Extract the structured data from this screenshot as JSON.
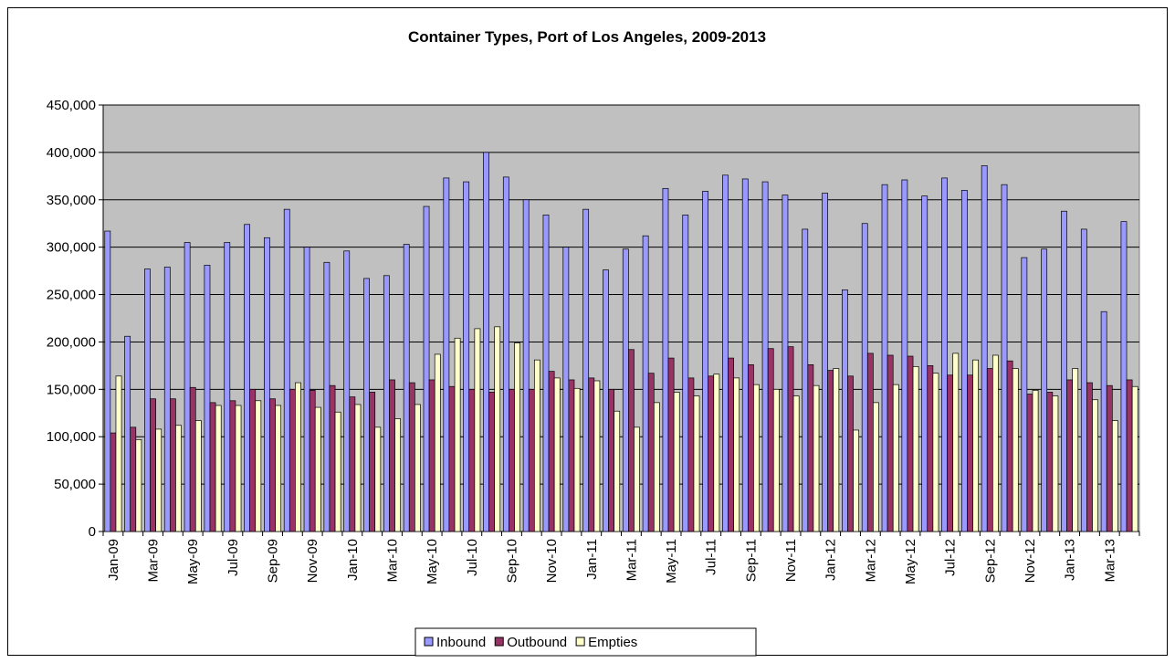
{
  "chart_data": {
    "type": "bar",
    "title": "Container Types, Port of Los Angeles, 2009-2013",
    "categories": [
      "Jan-09",
      null,
      "Mar-09",
      null,
      "May-09",
      null,
      "Jul-09",
      null,
      "Sep-09",
      null,
      "Nov-09",
      null,
      "Jan-10",
      null,
      "Mar-10",
      null,
      "May-10",
      null,
      "Jul-10",
      null,
      "Sep-10",
      null,
      "Nov-10",
      null,
      "Jan-11",
      null,
      "Mar-11",
      null,
      "May-11",
      null,
      "Jul-11",
      null,
      "Sep-11",
      null,
      "Nov-11",
      null,
      "Jan-12",
      null,
      "Mar-12",
      null,
      "May-12",
      null,
      "Jul-12",
      null,
      "Sep-12",
      null,
      "Nov-12",
      null,
      "Jan-13",
      null,
      "Mar-13",
      null
    ],
    "series": [
      {
        "name": "Inbound",
        "color": "#9999ff",
        "values": [
          317000,
          206000,
          277000,
          279000,
          305000,
          281000,
          305000,
          324000,
          310000,
          340000,
          300000,
          284000,
          296000,
          267000,
          270000,
          303000,
          343000,
          373000,
          369000,
          400000,
          374000,
          350000,
          334000,
          300000,
          340000,
          276000,
          298000,
          312000,
          362000,
          334000,
          359000,
          376000,
          372000,
          369000,
          355000,
          319000,
          357000,
          255000,
          325000,
          366000,
          371000,
          354000,
          373000,
          360000,
          386000,
          366000,
          289000,
          298000,
          338000,
          319000,
          232000,
          327000
        ]
      },
      {
        "name": "Outbound",
        "color": "#993366",
        "values": [
          104000,
          110000,
          140000,
          140000,
          152000,
          136000,
          138000,
          150000,
          140000,
          150000,
          149000,
          154000,
          142000,
          147000,
          160000,
          157000,
          160000,
          153000,
          150000,
          147000,
          150000,
          150000,
          169000,
          160000,
          162000,
          150000,
          192000,
          167000,
          183000,
          162000,
          164000,
          183000,
          176000,
          193000,
          195000,
          176000,
          170000,
          164000,
          188000,
          186000,
          185000,
          175000,
          165000,
          165000,
          172000,
          180000,
          145000,
          147000,
          160000,
          157000,
          154000,
          160000
        ]
      },
      {
        "name": "Empties",
        "color": "#ffffcc",
        "values": [
          164000,
          97000,
          108000,
          112000,
          117000,
          133000,
          133000,
          138000,
          133000,
          157000,
          131000,
          126000,
          134000,
          110000,
          119000,
          134000,
          187000,
          204000,
          214000,
          216000,
          199000,
          181000,
          162000,
          151000,
          159000,
          127000,
          110000,
          136000,
          147000,
          143000,
          166000,
          162000,
          155000,
          150000,
          143000,
          154000,
          172000,
          107000,
          136000,
          155000,
          174000,
          167000,
          188000,
          181000,
          186000,
          172000,
          149000,
          143000,
          172000,
          139000,
          117000,
          153000
        ]
      }
    ],
    "ylim": [
      0,
      450000
    ],
    "yticks": [
      0,
      {
        "value": 50000,
        "label": "50,000"
      },
      {
        "value": 100000,
        "label": "100,000"
      },
      {
        "value": 150000,
        "label": "150,000"
      },
      {
        "value": 200000,
        "label": "200,000"
      },
      {
        "value": 250000,
        "label": "250,000"
      },
      {
        "value": 300000,
        "label": "300,000"
      },
      {
        "value": 350000,
        "label": "350,000"
      },
      {
        "value": 400000,
        "label": "400,000"
      },
      {
        "value": 450000,
        "label": "450,000"
      }
    ],
    "grid": true,
    "legend": "bottom",
    "plot_background": "#c0c0c0"
  }
}
